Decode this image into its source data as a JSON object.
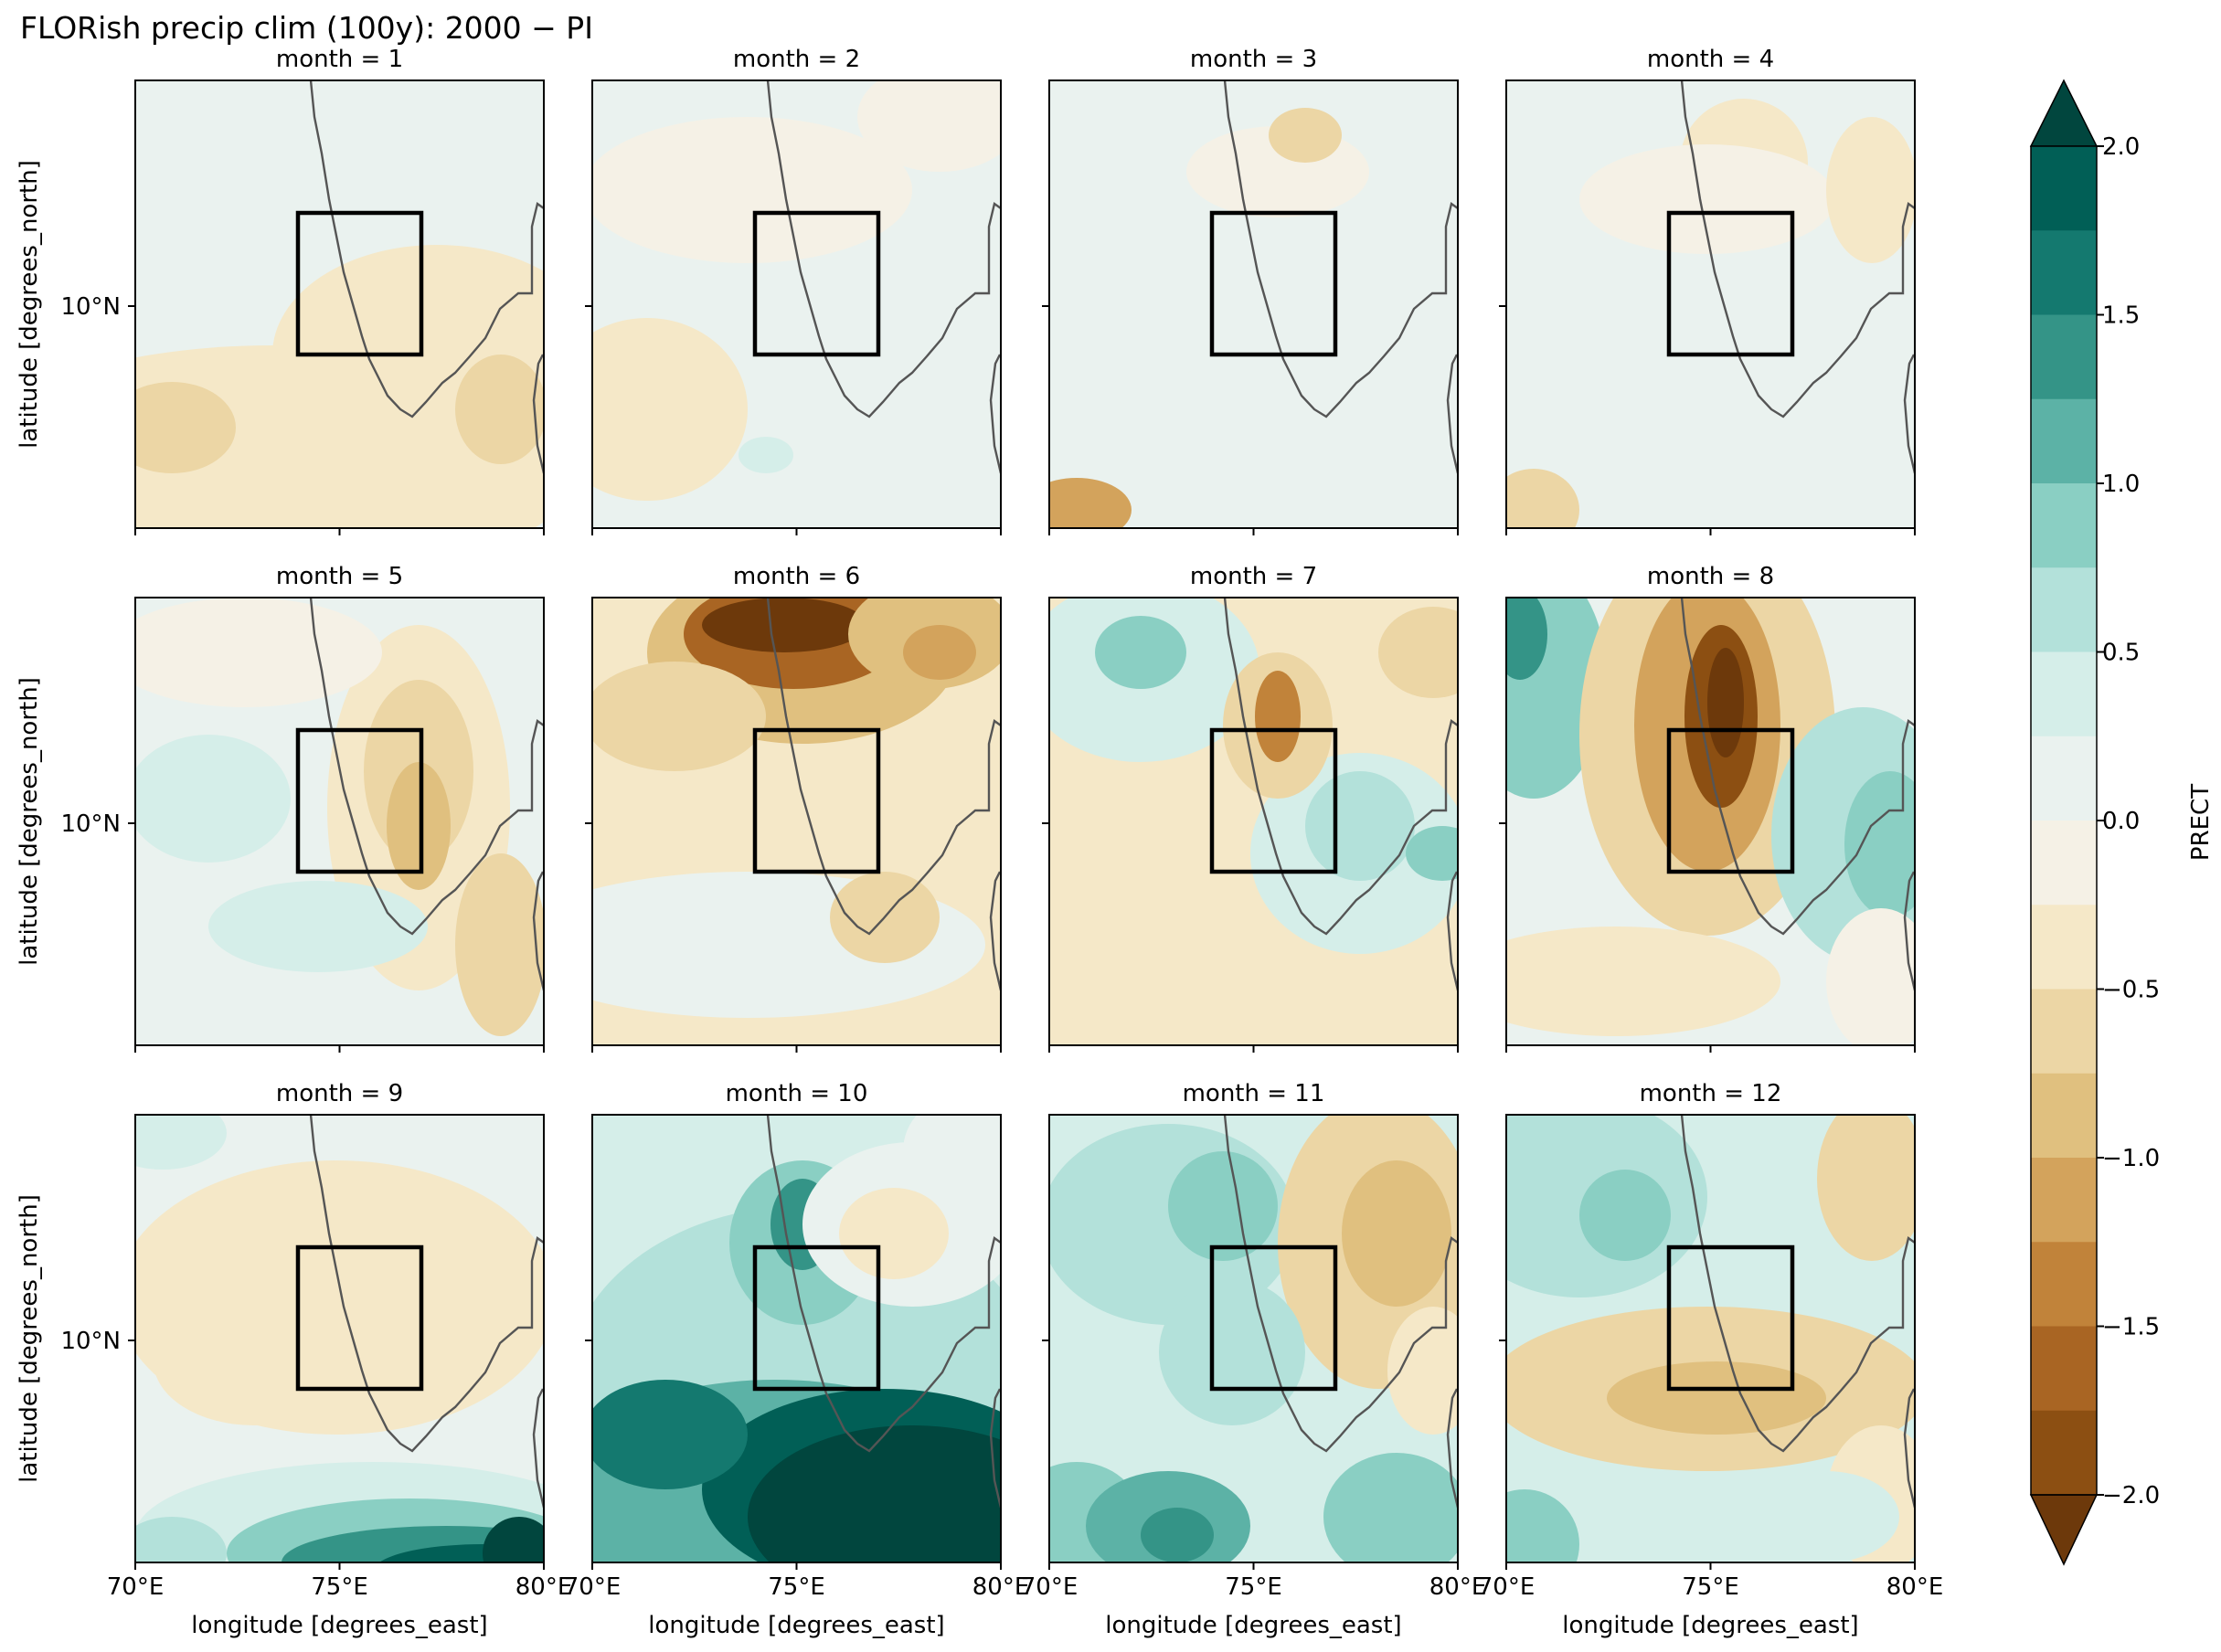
{
  "figure": {
    "title": "FLORish precip clim (100y): 2000 − PI"
  },
  "panel_titles": [
    "month = 1",
    "month = 2",
    "month = 3",
    "month = 4",
    "month = 5",
    "month = 6",
    "month = 7",
    "month = 8",
    "month = 9",
    "month = 10",
    "month = 11",
    "month = 12"
  ],
  "axes": {
    "ylabel": "latitude [degrees_north]",
    "xlabel": "longitude [degrees_east]",
    "lat_tick": "10°N",
    "lon_ticks": [
      "70°E",
      "75°E",
      "80°E"
    ]
  },
  "colorbar": {
    "label": "PRECT",
    "tick_labels": [
      "2.0",
      "1.5",
      "1.0",
      "0.5",
      "0.0",
      "−0.5",
      "−1.0",
      "−1.5",
      "−2.0"
    ],
    "colors_high_to_low": [
      "#01463e",
      "#015f56",
      "#14796f",
      "#349487",
      "#5cb2a6",
      "#8acfc3",
      "#b3e1da",
      "#d5eee9",
      "#eaf2ef",
      "#f5f1e6",
      "#f5e8c8",
      "#ecd6a5",
      "#e0c07f",
      "#d3a35c",
      "#c1833a",
      "#a96523",
      "#8c4f12",
      "#6d390b"
    ]
  },
  "chart_data": {
    "type": "map",
    "title": "FLORish precip clim (100y): 2000 − PI",
    "variable": "PRECT",
    "xlabel": "longitude [degrees_east]",
    "ylabel": "latitude [degrees_north]",
    "layout": "3 rows x 4 columns, shared axes",
    "lon_range": [
      70,
      80
    ],
    "lat_ticks": [
      10
    ],
    "lon_ticks": [
      70,
      75,
      80
    ],
    "box_region": {
      "lon": [
        74,
        77
      ],
      "lat": [
        9.2,
        12.8
      ]
    },
    "colorbar": {
      "min": -2.25,
      "max": 2.25,
      "step": 0.25,
      "extend": "both",
      "ticks": [
        -2.0,
        -1.5,
        -1.0,
        -0.5,
        0.0,
        0.5,
        1.0,
        1.5,
        2.0
      ]
    },
    "panels": [
      {
        "month": 1,
        "pattern": "weak negative (about -0.25 to -0.5) over south and east, near-zero elsewhere"
      },
      {
        "month": 2,
        "pattern": "near-zero to weakly positive, weak negative in southwest and north"
      },
      {
        "month": 3,
        "pattern": "mostly near-zero, weak negative in the south"
      },
      {
        "month": 4,
        "pattern": "weak negative in the north near the coast, near-zero elsewhere"
      },
      {
        "month": 5,
        "pattern": "negative (about -0.5) over box and northeast, weak positive west"
      },
      {
        "month": 6,
        "pattern": "strong negative (below -2.0) along the northern coast, negative over box"
      },
      {
        "month": 7,
        "pattern": "positive (about 0.75) in northwest and east, negative core (about -1.5) near the box top"
      },
      {
        "month": 8,
        "pattern": "strong negative (about -2.0) core north of box, positive (about 1.0) in east and northwest"
      },
      {
        "month": 9,
        "pattern": "strong positive (above 2.0) in the south, weak negative over box"
      },
      {
        "month": 10,
        "pattern": "positive over most of the domain, strongest (above 2.0) in the southeast"
      },
      {
        "month": 11,
        "pattern": "positive in west and south, negative (about -1.0) in northeast"
      },
      {
        "month": 12,
        "pattern": "positive in northwest, negative band south of box"
      }
    ]
  }
}
